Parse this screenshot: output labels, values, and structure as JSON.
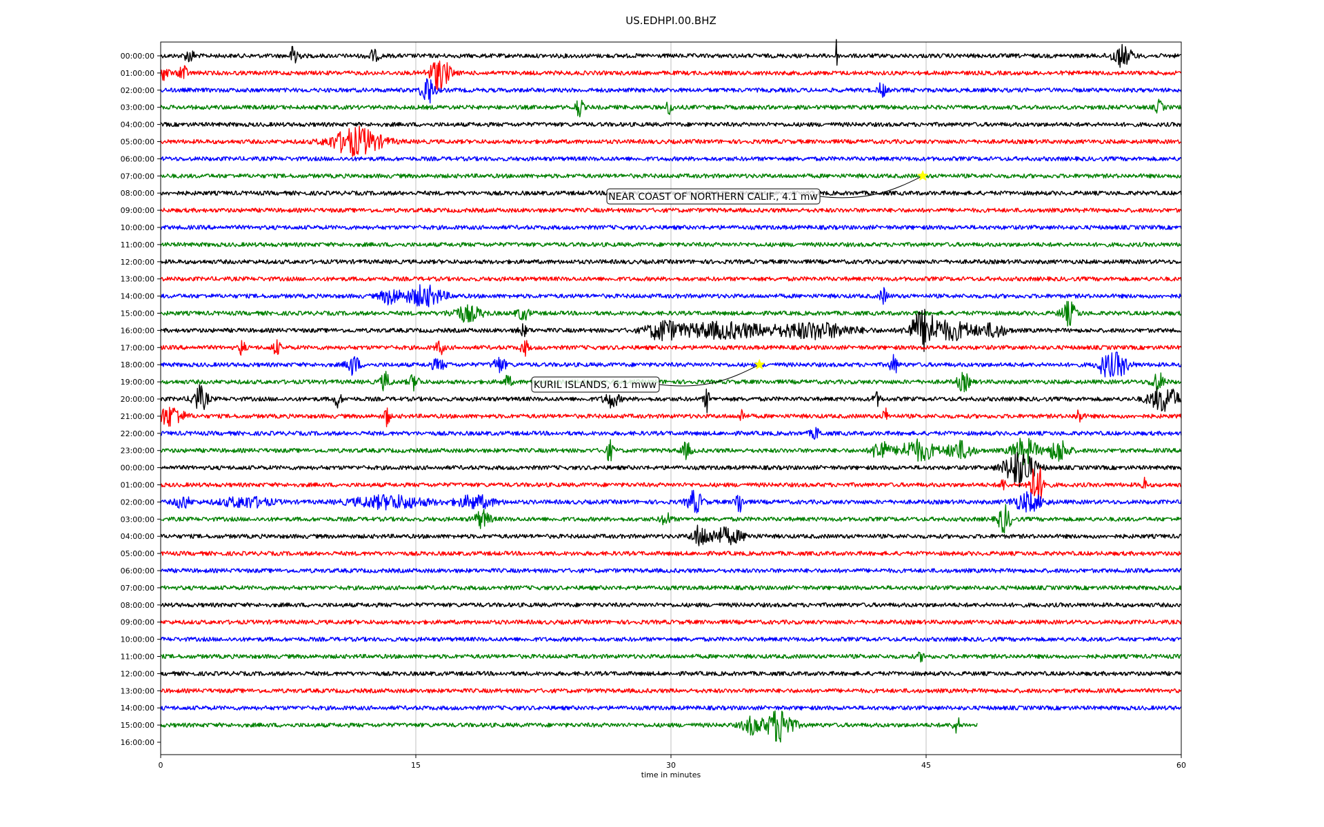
{
  "chart_data": {
    "type": "line",
    "title": "US.EDHPI.00.BHZ",
    "xlabel": "time in minutes",
    "ylabel": "",
    "xlim": [
      0,
      60
    ],
    "x_ticks": [
      0,
      15,
      30,
      45,
      60
    ],
    "x_tick_labels": [
      "0",
      "15",
      "30",
      "45",
      "60"
    ],
    "grid": "vertical",
    "color_cycle": [
      "#000000",
      "#ff0000",
      "#0000ff",
      "#008000"
    ],
    "row_labels": [
      "00:00:00",
      "01:00:00",
      "02:00:00",
      "03:00:00",
      "04:00:00",
      "05:00:00",
      "06:00:00",
      "07:00:00",
      "08:00:00",
      "09:00:00",
      "10:00:00",
      "11:00:00",
      "12:00:00",
      "13:00:00",
      "14:00:00",
      "15:00:00",
      "16:00:00",
      "17:00:00",
      "18:00:00",
      "19:00:00",
      "20:00:00",
      "21:00:00",
      "22:00:00",
      "23:00:00",
      "00:00:00",
      "01:00:00",
      "02:00:00",
      "03:00:00",
      "04:00:00",
      "05:00:00",
      "06:00:00",
      "07:00:00",
      "08:00:00",
      "09:00:00",
      "10:00:00",
      "11:00:00",
      "12:00:00",
      "13:00:00",
      "14:00:00",
      "15:00:00",
      "16:00:00"
    ],
    "last_trace_end_minute": 48,
    "events": [
      {
        "row": 7,
        "minute": 44.8,
        "label": "NEAR COAST OF NORTHERN CALIF., 4.1 mw",
        "marker_color": "#ffff00"
      },
      {
        "row": 18,
        "minute": 35.2,
        "label": "KURIL ISLANDS, 6.1 mww",
        "marker_color": "#ffff00"
      }
    ],
    "bursts": [
      {
        "row": 0,
        "minute": 1.7,
        "amp": 0.5,
        "width": 0.4
      },
      {
        "row": 0,
        "minute": 7.9,
        "amp": 1.3,
        "width": 0.3
      },
      {
        "row": 0,
        "minute": 12.5,
        "amp": 0.4,
        "width": 0.5
      },
      {
        "row": 0,
        "minute": 39.7,
        "amp": 1.5,
        "width": 0.1
      },
      {
        "row": 0,
        "minute": 56.5,
        "amp": 0.8,
        "width": 0.8
      },
      {
        "row": 1,
        "minute": 0.2,
        "amp": 0.5,
        "width": 0.4
      },
      {
        "row": 1,
        "minute": 1.3,
        "amp": 0.8,
        "width": 0.3
      },
      {
        "row": 1,
        "minute": 16.4,
        "amp": 1.3,
        "width": 0.8
      },
      {
        "row": 2,
        "minute": 15.7,
        "amp": 1.2,
        "width": 0.5
      },
      {
        "row": 2,
        "minute": 42.4,
        "amp": 0.6,
        "width": 0.3
      },
      {
        "row": 3,
        "minute": 24.6,
        "amp": 0.8,
        "width": 0.3
      },
      {
        "row": 3,
        "minute": 29.9,
        "amp": 0.5,
        "width": 0.3
      },
      {
        "row": 3,
        "minute": 58.7,
        "amp": 0.5,
        "width": 0.3
      },
      {
        "row": 5,
        "minute": 11.5,
        "amp": 1.1,
        "width": 2.0
      },
      {
        "row": 14,
        "minute": 13.5,
        "amp": 0.6,
        "width": 0.8
      },
      {
        "row": 14,
        "minute": 15.5,
        "amp": 0.8,
        "width": 1.5
      },
      {
        "row": 14,
        "minute": 42.5,
        "amp": 0.6,
        "width": 0.3
      },
      {
        "row": 15,
        "minute": 18.0,
        "amp": 0.6,
        "width": 1.2
      },
      {
        "row": 15,
        "minute": 21.3,
        "amp": 0.5,
        "width": 0.5
      },
      {
        "row": 15,
        "minute": 53.4,
        "amp": 0.9,
        "width": 0.6
      },
      {
        "row": 16,
        "minute": 21.3,
        "amp": 0.4,
        "width": 0.4
      },
      {
        "row": 16,
        "minute": 29.5,
        "amp": 0.7,
        "width": 1.2
      },
      {
        "row": 16,
        "minute": 33.0,
        "amp": 0.6,
        "width": 4.0
      },
      {
        "row": 16,
        "minute": 38.5,
        "amp": 0.6,
        "width": 3.0
      },
      {
        "row": 16,
        "minute": 44.8,
        "amp": 1.5,
        "width": 1.0
      },
      {
        "row": 16,
        "minute": 46.5,
        "amp": 0.7,
        "width": 2.0
      },
      {
        "row": 16,
        "minute": 49.0,
        "amp": 0.5,
        "width": 1.0
      },
      {
        "row": 17,
        "minute": 4.8,
        "amp": 0.8,
        "width": 0.2
      },
      {
        "row": 17,
        "minute": 6.8,
        "amp": 0.6,
        "width": 0.3
      },
      {
        "row": 17,
        "minute": 16.4,
        "amp": 0.6,
        "width": 0.3
      },
      {
        "row": 17,
        "minute": 21.4,
        "amp": 0.6,
        "width": 0.3
      },
      {
        "row": 18,
        "minute": 11.3,
        "amp": 0.8,
        "width": 0.5
      },
      {
        "row": 18,
        "minute": 16.3,
        "amp": 0.4,
        "width": 0.6
      },
      {
        "row": 18,
        "minute": 19.9,
        "amp": 0.6,
        "width": 0.5
      },
      {
        "row": 18,
        "minute": 43.1,
        "amp": 0.8,
        "width": 0.3
      },
      {
        "row": 18,
        "minute": 55.5,
        "amp": 0.7,
        "width": 0.6
      },
      {
        "row": 18,
        "minute": 56.3,
        "amp": 0.9,
        "width": 0.8
      },
      {
        "row": 19,
        "minute": 13.2,
        "amp": 0.7,
        "width": 0.4
      },
      {
        "row": 19,
        "minute": 14.9,
        "amp": 0.6,
        "width": 0.4
      },
      {
        "row": 19,
        "minute": 20.4,
        "amp": 0.5,
        "width": 0.3
      },
      {
        "row": 19,
        "minute": 47.2,
        "amp": 0.7,
        "width": 0.5
      },
      {
        "row": 19,
        "minute": 58.6,
        "amp": 0.8,
        "width": 0.5
      },
      {
        "row": 20,
        "minute": 2.3,
        "amp": 1.0,
        "width": 0.6
      },
      {
        "row": 20,
        "minute": 10.4,
        "amp": 0.6,
        "width": 0.3
      },
      {
        "row": 20,
        "minute": 26.5,
        "amp": 0.6,
        "width": 0.6
      },
      {
        "row": 20,
        "minute": 32.1,
        "amp": 1.0,
        "width": 0.2
      },
      {
        "row": 20,
        "minute": 42.1,
        "amp": 0.5,
        "width": 0.3
      },
      {
        "row": 20,
        "minute": 59.0,
        "amp": 1.0,
        "width": 1.2
      },
      {
        "row": 21,
        "minute": 0.6,
        "amp": 0.8,
        "width": 1.0
      },
      {
        "row": 21,
        "minute": 13.3,
        "amp": 0.9,
        "width": 0.2
      },
      {
        "row": 21,
        "minute": 34.2,
        "amp": 0.6,
        "width": 0.2
      },
      {
        "row": 21,
        "minute": 42.6,
        "amp": 0.6,
        "width": 0.2
      },
      {
        "row": 21,
        "minute": 54.0,
        "amp": 0.5,
        "width": 0.3
      },
      {
        "row": 22,
        "minute": 38.5,
        "amp": 0.4,
        "width": 0.4
      },
      {
        "row": 23,
        "minute": 26.4,
        "amp": 0.8,
        "width": 0.3
      },
      {
        "row": 23,
        "minute": 30.9,
        "amp": 0.6,
        "width": 0.4
      },
      {
        "row": 23,
        "minute": 42.3,
        "amp": 0.9,
        "width": 0.6
      },
      {
        "row": 23,
        "minute": 44.5,
        "amp": 0.8,
        "width": 1.5
      },
      {
        "row": 23,
        "minute": 47.0,
        "amp": 0.7,
        "width": 1.0
      },
      {
        "row": 23,
        "minute": 50.8,
        "amp": 1.0,
        "width": 1.0
      },
      {
        "row": 23,
        "minute": 52.8,
        "amp": 0.9,
        "width": 0.8
      },
      {
        "row": 24,
        "minute": 50.5,
        "amp": 1.5,
        "width": 1.2
      },
      {
        "row": 25,
        "minute": 49.5,
        "amp": 0.4,
        "width": 0.3
      },
      {
        "row": 25,
        "minute": 51.5,
        "amp": 1.6,
        "width": 0.6
      },
      {
        "row": 25,
        "minute": 57.8,
        "amp": 0.5,
        "width": 0.2
      },
      {
        "row": 26,
        "minute": 1.3,
        "amp": 0.5,
        "width": 0.6
      },
      {
        "row": 26,
        "minute": 5.0,
        "amp": 0.4,
        "width": 2.0
      },
      {
        "row": 26,
        "minute": 13.5,
        "amp": 0.5,
        "width": 3.0
      },
      {
        "row": 26,
        "minute": 18.5,
        "amp": 0.5,
        "width": 1.5
      },
      {
        "row": 26,
        "minute": 31.4,
        "amp": 0.9,
        "width": 0.6
      },
      {
        "row": 26,
        "minute": 34.0,
        "amp": 1.0,
        "width": 0.3
      },
      {
        "row": 26,
        "minute": 51.0,
        "amp": 0.7,
        "width": 1.2
      },
      {
        "row": 27,
        "minute": 18.9,
        "amp": 0.7,
        "width": 0.6
      },
      {
        "row": 27,
        "minute": 29.7,
        "amp": 0.5,
        "width": 0.4
      },
      {
        "row": 27,
        "minute": 49.6,
        "amp": 1.1,
        "width": 0.5
      },
      {
        "row": 28,
        "minute": 31.7,
        "amp": 0.8,
        "width": 0.6
      },
      {
        "row": 28,
        "minute": 33.2,
        "amp": 0.6,
        "width": 1.5
      },
      {
        "row": 35,
        "minute": 44.7,
        "amp": 0.3,
        "width": 0.3
      },
      {
        "row": 39,
        "minute": 34.8,
        "amp": 0.7,
        "width": 0.8
      },
      {
        "row": 39,
        "minute": 36.4,
        "amp": 1.4,
        "width": 1.0
      },
      {
        "row": 39,
        "minute": 46.8,
        "amp": 0.6,
        "width": 0.3
      }
    ]
  }
}
